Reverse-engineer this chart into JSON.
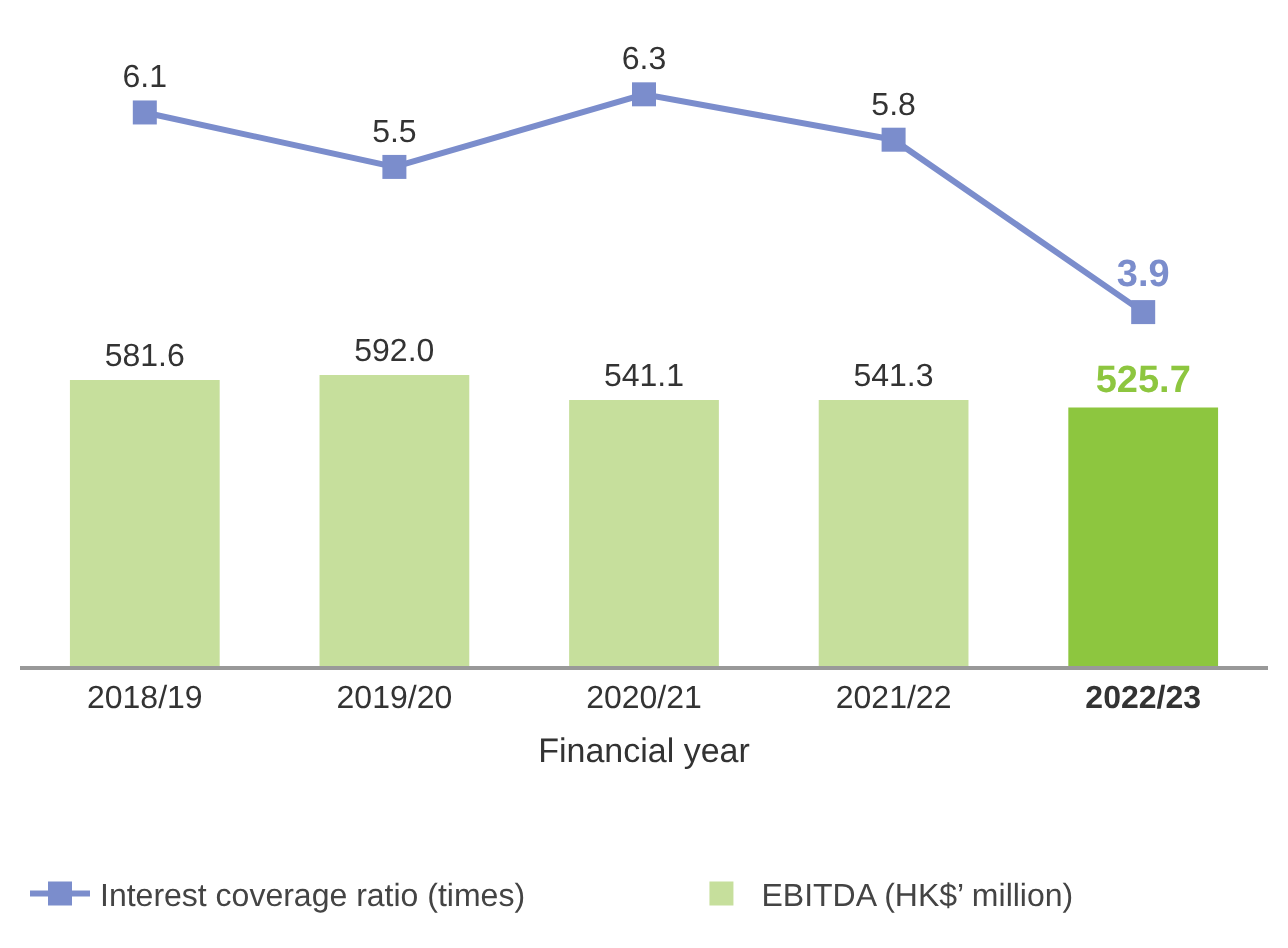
{
  "chart_data": [
    {
      "type": "line",
      "categories": [
        "2018/19",
        "2019/20",
        "2020/21",
        "2021/22",
        "2022/23"
      ],
      "tick_labels": false,
      "legend": "bottom left",
      "grid": false,
      "series": [
        {
          "name": "Interest coverage ratio (times)",
          "color": "#7b8dcc",
          "marker": "square",
          "values": [
            6.1,
            5.5,
            6.3,
            5.8,
            3.9
          ],
          "value_labels": [
            "6.1",
            "5.5",
            "6.3",
            "5.8",
            "3.9"
          ]
        }
      ]
    },
    {
      "type": "bar",
      "xlabel": "Financial year",
      "categories": [
        "2018/19",
        "2019/20",
        "2020/21",
        "2021/22",
        "2022/23"
      ],
      "legend": "bottom",
      "grid": false,
      "series": [
        {
          "name": "EBITDA (HK$’ million)",
          "color": "#c6df9c",
          "colors": [
            "#c6df9c",
            "#c6df9c",
            "#c6df9c",
            "#c6df9c",
            "#8dc63f"
          ],
          "values": [
            581.6,
            592.0,
            541.1,
            541.3,
            525.7
          ],
          "value_labels": [
            "581.6",
            "592.0",
            "541.1",
            "541.3",
            "525.7"
          ]
        }
      ]
    }
  ]
}
